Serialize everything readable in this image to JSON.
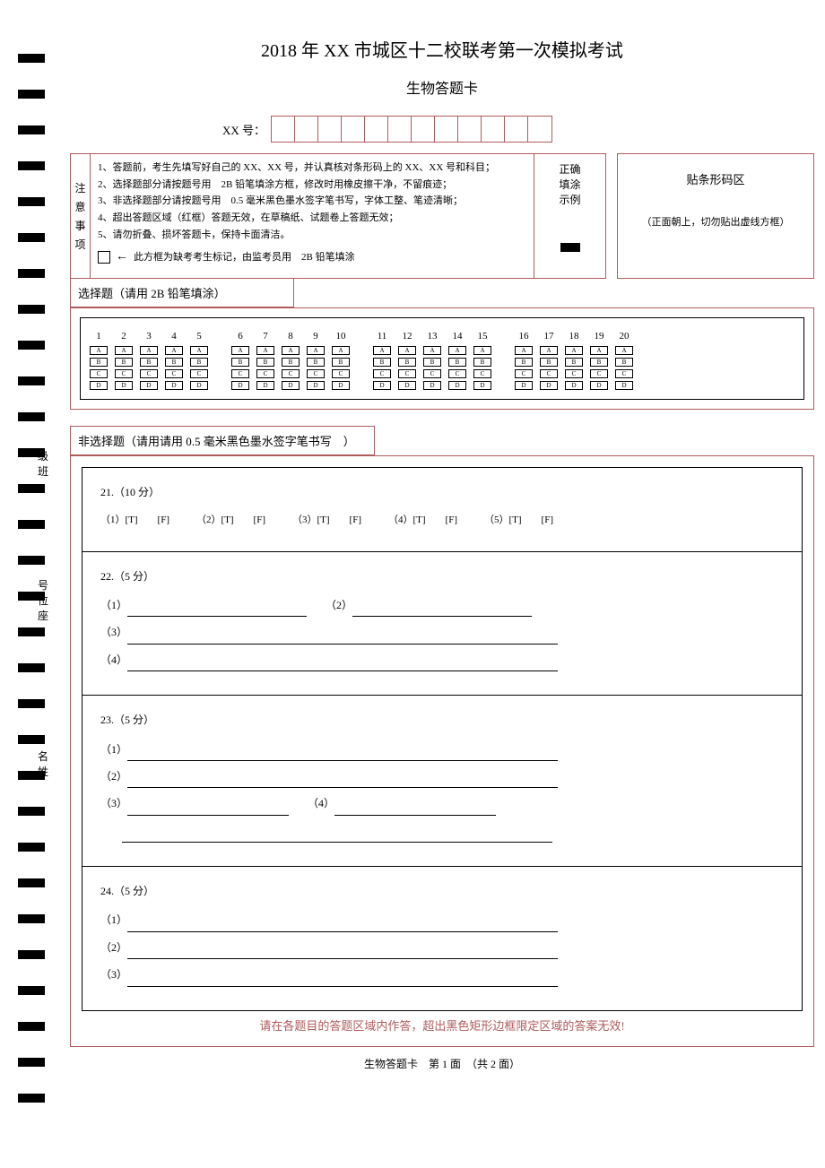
{
  "title": "2018 年 XX 市城区十二校联考第一次模拟考试",
  "subtitle": "生物答题卡",
  "id_label": "XX 号：",
  "id_cell_count": 12,
  "notice": {
    "side": [
      "注",
      "意",
      "事",
      "项"
    ],
    "lines": [
      "1、答题前，考生先填写好自己的 XX、XX 号，并认真核对条形码上的 XX、XX 号和科目；",
      "2、选择题部分请按题号用　2B 铅笔填涂方框，修改时用橡皮擦干净，不留痕迹；",
      "3、非选择题部分请按题号用　0.5 毫米黑色墨水签字笔书写，字体工整、笔迹清晰；",
      "4、超出答题区域（红框）答题无效，在草稿纸、试题卷上答题无效；",
      "5、请勿折叠、损坏答题卡，保持卡面清洁。"
    ],
    "absent": "此方框为缺考考生标记，由监考员用　2B 铅笔填涂"
  },
  "example": {
    "l1": "正确",
    "l2": "填涂",
    "l3": "示例"
  },
  "barcode": {
    "title": "贴条形码区",
    "hint": "（正面朝上，切勿贴出虚线方框）"
  },
  "select_header": "选择题（请用 2B 铅笔填涂）",
  "choice_letters": [
    "A",
    "B",
    "C",
    "D"
  ],
  "question_groups": [
    [
      1,
      2,
      3,
      4,
      5
    ],
    [
      6,
      7,
      8,
      9,
      10
    ],
    [
      11,
      12,
      13,
      14,
      15
    ],
    [
      16,
      17,
      18,
      19,
      20
    ]
  ],
  "side_labels": {
    "a": "级班",
    "b": "号位座",
    "c": "名姓"
  },
  "nonsel_header": "非选择题（请用请用 0.5 毫米黑色墨水签字笔书写　）",
  "q21": {
    "title": "21.（10 分）",
    "items": [
      "（1）[T]　　[F]",
      "（2）[T]　　[F]",
      "（3）[T]　　[F]",
      "（4）[T]　　[F]",
      "（5）[T]　　[F]"
    ]
  },
  "q22": {
    "title": "22.（5 分）",
    "s1": "（1）",
    "s2": "（2）",
    "s3": "（3）",
    "s4": "（4）"
  },
  "q23": {
    "title": "23.（5 分）",
    "s1": "（1）",
    "s2": "（2）",
    "s3": "（3）",
    "s4": "（4）"
  },
  "q24": {
    "title": "24.（5 分）",
    "s1": "（1）",
    "s2": "（2）",
    "s3": "（3）"
  },
  "warning": "请在各题目的答题区域内作答，超出黑色矩形边框限定区域的答案无效!",
  "footer": "生物答题卡　第 1 面　（共 2 面）",
  "colors": {
    "border": "#b15b5b",
    "black": "#000000",
    "bg": "#ffffff"
  }
}
